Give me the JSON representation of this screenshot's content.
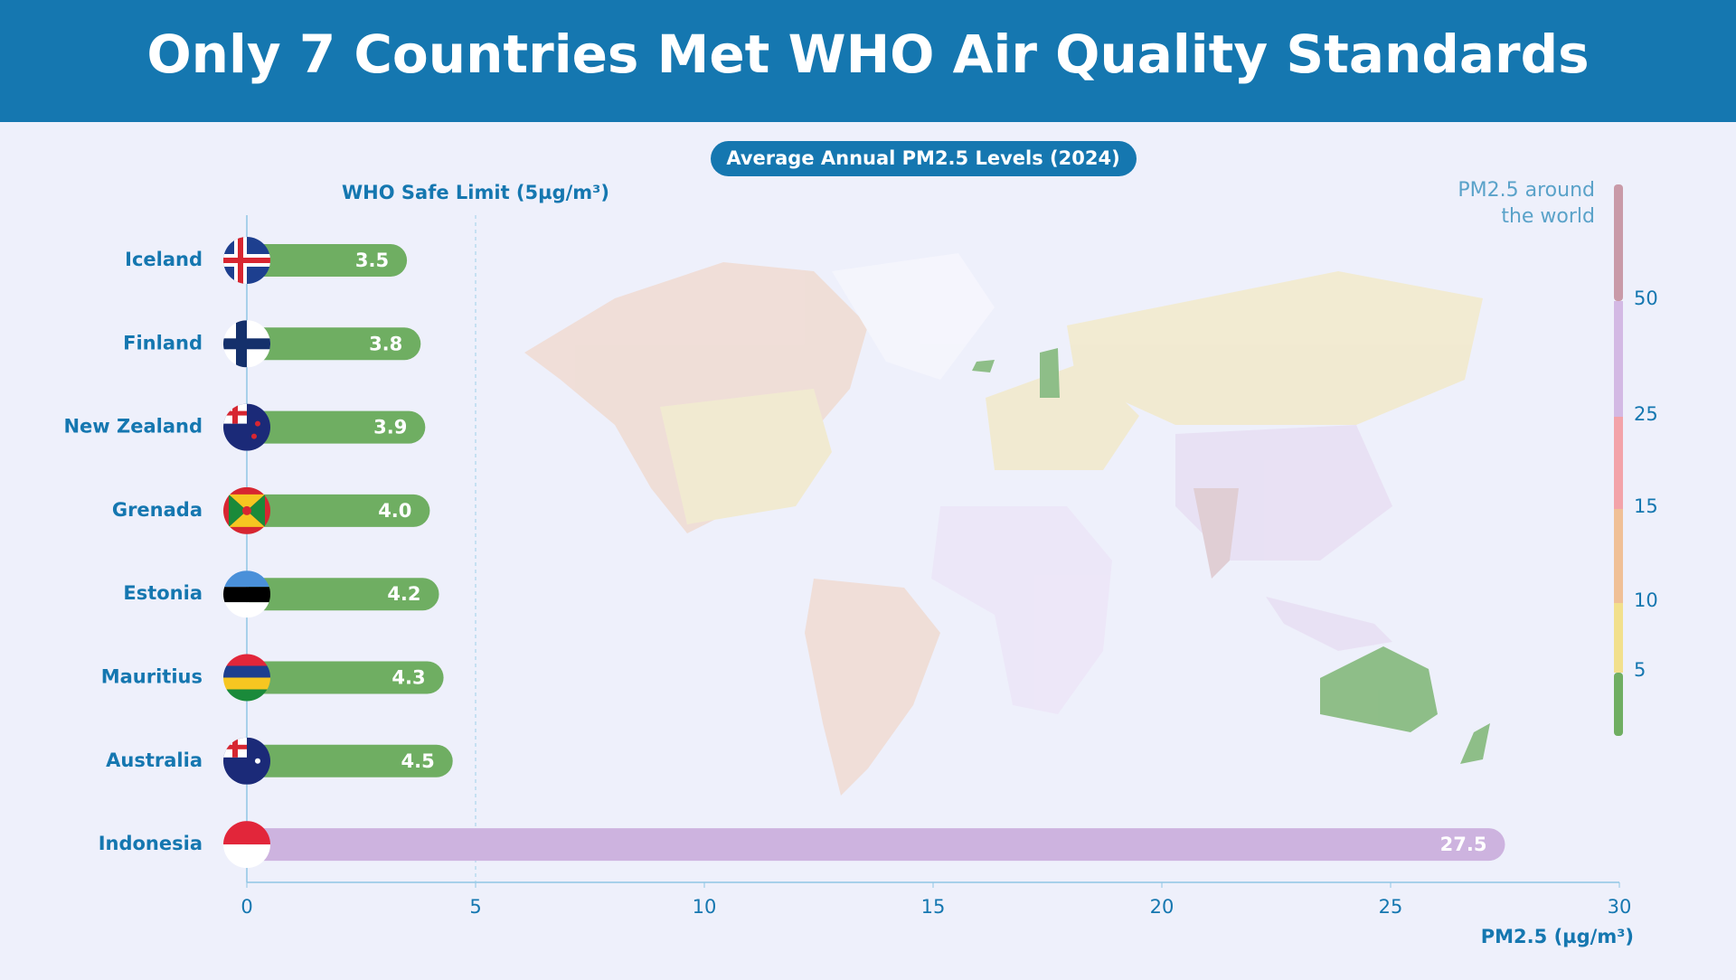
{
  "chart_data": {
    "type": "bar",
    "orientation": "horizontal",
    "title": "Only 7 Countries Met WHO Air Quality Standards",
    "subtitle": "Average Annual PM2.5 Levels (2024)",
    "x_label": "PM2.5 (µg/m³)",
    "categories": [
      "Iceland",
      "Finland",
      "New Zealand",
      "Grenada",
      "Estonia",
      "Mauritius",
      "Australia",
      "Indonesia"
    ],
    "values": [
      3.5,
      3.8,
      3.9,
      4.0,
      4.2,
      4.3,
      4.5,
      27.5
    ],
    "value_labels": [
      "3.5",
      "3.8",
      "3.9",
      "4.0",
      "4.2",
      "4.3",
      "4.5",
      "27.5"
    ],
    "colors": [
      "#6fae62",
      "#6fae62",
      "#6fae62",
      "#6fae62",
      "#6fae62",
      "#6fae62",
      "#6fae62",
      "#cdb3df"
    ],
    "xlim": [
      0,
      30
    ],
    "xticks": [
      0,
      5,
      10,
      15,
      20,
      25,
      30
    ],
    "reference_line": {
      "value": 5,
      "label": "WHO Safe Limit (5µg/m³)"
    },
    "colorbar": {
      "title": [
        "PM2.5 around",
        "the world"
      ],
      "ticks": [
        5,
        10,
        15,
        25,
        50
      ],
      "colors": [
        "#6fae62",
        "#f2e08c",
        "#f0c096",
        "#f3a3a9",
        "#d3b9e4",
        "#c99aa8"
      ]
    }
  }
}
